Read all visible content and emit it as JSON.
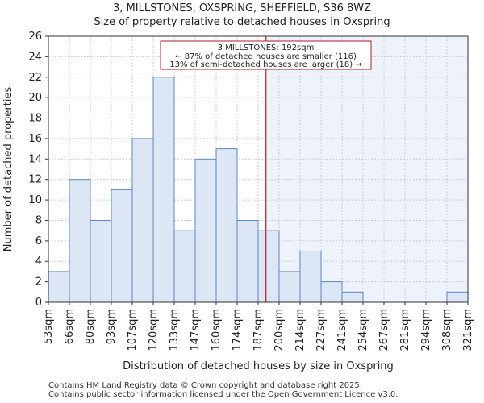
{
  "chart_data": {
    "type": "bar",
    "title": "3, MILLSTONES, OXSPRING, SHEFFIELD, S36 8WZ",
    "subtitle": "Size of property relative to detached houses in Oxspring",
    "xlabel": "Distribution of detached houses by size in Oxspring",
    "ylabel": "Number of detached properties",
    "ylim": [
      0,
      26
    ],
    "yticks": [
      0,
      2,
      4,
      6,
      8,
      10,
      12,
      14,
      16,
      18,
      20,
      22,
      24,
      26
    ],
    "bin_edges": [
      "53sqm",
      "66sqm",
      "80sqm",
      "93sqm",
      "107sqm",
      "120sqm",
      "133sqm",
      "147sqm",
      "160sqm",
      "174sqm",
      "187sqm",
      "200sqm",
      "214sqm",
      "227sqm",
      "241sqm",
      "254sqm",
      "267sqm",
      "281sqm",
      "294sqm",
      "308sqm",
      "321sqm"
    ],
    "values": [
      3,
      12,
      8,
      11,
      16,
      22,
      7,
      14,
      15,
      8,
      7,
      3,
      5,
      2,
      1,
      0,
      0,
      0,
      0,
      1
    ],
    "marker": {
      "value_sqm": 192,
      "bin_position": 10.375
    },
    "annotation": {
      "line1": "3 MILLSTONES: 192sqm",
      "line2": "← 87% of detached houses are smaller (116)",
      "line3": "13% of semi-detached houses are larger (18) →"
    },
    "colors": {
      "bar_fill": "#dce6f5",
      "bar_edge": "#5f87c0",
      "highlight_bg": "#eef2fb",
      "marker": "#aa2222",
      "grid": "#c8ccd4"
    }
  },
  "footer": {
    "line1": "Contains HM Land Registry data © Crown copyright and database right 2025.",
    "line2": "Contains public sector information licensed under the Open Government Licence v3.0."
  }
}
